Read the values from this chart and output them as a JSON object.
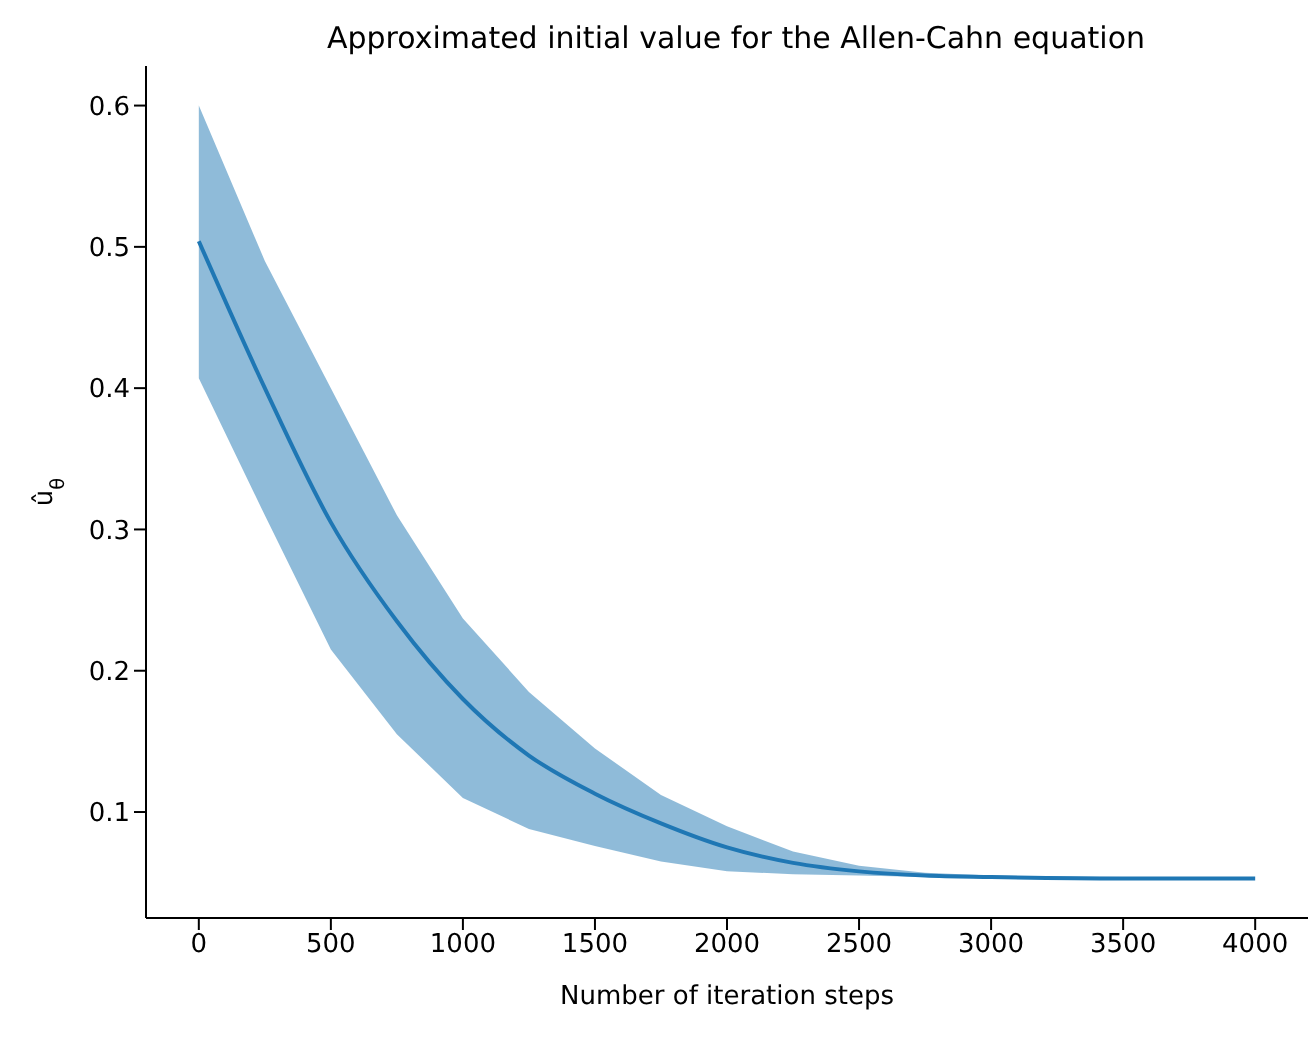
{
  "chart_data": {
    "type": "line",
    "title": "Approximated initial value for the Allen-Cahn equation",
    "xlabel": "Number of iteration steps",
    "ylabel": "û$_{θ}$",
    "xlim": [
      -200,
      4200
    ],
    "xticks": [
      0,
      500,
      1000,
      1500,
      2000,
      2500,
      3000,
      3500,
      4000
    ],
    "ylim": [
      0.025,
      0.628
    ],
    "yticks": [
      0.1,
      0.2,
      0.3,
      0.4,
      0.5,
      0.6
    ],
    "grid": false,
    "legend": false,
    "marker": "none",
    "line_style": "solid",
    "series": [
      {
        "color": "#1f77b4",
        "x": [
          0,
          250,
          500,
          750,
          1000,
          1250,
          1500,
          1750,
          2000,
          2250,
          2500,
          2750,
          3000,
          3500,
          4000
        ],
        "values": [
          0.504,
          0.4,
          0.305,
          0.235,
          0.18,
          0.14,
          0.113,
          0.092,
          0.075,
          0.064,
          0.058,
          0.055,
          0.054,
          0.053,
          0.053
        ],
        "lower": [
          0.407,
          0.31,
          0.215,
          0.155,
          0.11,
          0.088,
          0.076,
          0.065,
          0.058,
          0.056,
          0.055,
          0.054,
          0.053,
          0.053,
          0.053
        ],
        "upper": [
          0.6,
          0.49,
          0.4,
          0.31,
          0.237,
          0.185,
          0.145,
          0.112,
          0.09,
          0.072,
          0.062,
          0.057,
          0.055,
          0.054,
          0.053
        ]
      }
    ]
  }
}
